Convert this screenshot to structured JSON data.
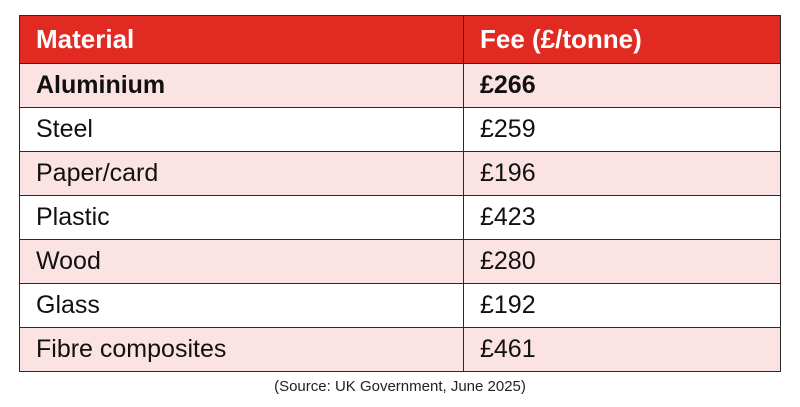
{
  "table": {
    "headers": [
      "Material",
      "Fee (£/tonne)"
    ],
    "rows": [
      {
        "material": "Aluminium",
        "fee": "£266",
        "bold": true
      },
      {
        "material": "Steel",
        "fee": "£259"
      },
      {
        "material": "Paper/card",
        "fee": "£196"
      },
      {
        "material": "Plastic",
        "fee": "£423"
      },
      {
        "material": "Wood",
        "fee": "£280"
      },
      {
        "material": "Glass",
        "fee": "£192"
      },
      {
        "material": "Fibre composites",
        "fee": "£461"
      }
    ]
  },
  "source": "(Source: UK Government, June 2025)",
  "colors": {
    "header_background": "#e02a22",
    "shaded_row": "#fbe3e3"
  }
}
